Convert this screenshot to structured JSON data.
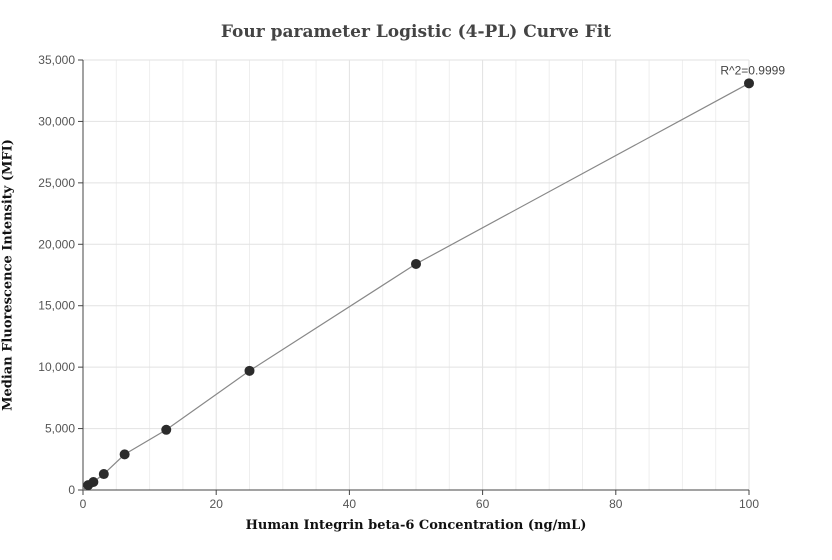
{
  "chart_data": {
    "type": "scatter",
    "title": "Four parameter Logistic (4-PL) Curve Fit",
    "xlabel": "Human Integrin beta-6 Concentration (ng/mL)",
    "ylabel": "Median Fluorescence Intensity (MFI)",
    "xlim": [
      0,
      100
    ],
    "ylim": [
      0,
      35000
    ],
    "xticks": [
      0,
      20,
      40,
      60,
      80,
      100
    ],
    "yticks": [
      0,
      5000,
      10000,
      15000,
      20000,
      25000,
      30000,
      35000
    ],
    "ytick_labels": [
      "0",
      "5,000",
      "10,000",
      "15,000",
      "20,000",
      "25,000",
      "30,000",
      "35,000"
    ],
    "grid": true,
    "series": [
      {
        "x": [
          0.78,
          1.56,
          3.125,
          6.25,
          12.5,
          25,
          50,
          100
        ],
        "y": [
          400,
          650,
          1300,
          2900,
          4900,
          9700,
          18400,
          33100
        ],
        "color": "#2b2b2b"
      }
    ],
    "fit_curve_color": "#888888",
    "annotation": "R^2=0.9999"
  }
}
